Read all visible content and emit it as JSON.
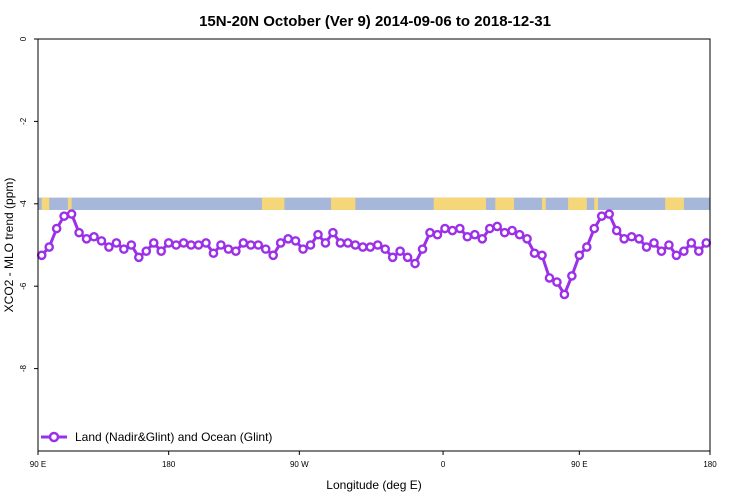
{
  "chart_data": {
    "type": "line",
    "title": "15N-20N October (Ver 9)   2014-09-06 to 2018-12-31",
    "xlabel": "Longitude (deg E)",
    "ylabel": "XCO2 - MLO trend (ppm)",
    "xlim": [
      90,
      450
    ],
    "ylim": [
      -10,
      0
    ],
    "x_ticks": [
      {
        "value": 90,
        "label": "90 E"
      },
      {
        "value": 160,
        "label": "180"
      },
      {
        "value": 230,
        "label": "90 W"
      },
      {
        "value": 307,
        "label": "0"
      },
      {
        "value": 380,
        "label": "90 E"
      },
      {
        "value": 450,
        "label": "180"
      }
    ],
    "y_ticks": [
      {
        "value": 0,
        "label": "0"
      },
      {
        "value": -2,
        "label": "-2"
      },
      {
        "value": -4,
        "label": "-4"
      },
      {
        "value": -6,
        "label": "-6"
      },
      {
        "value": -8,
        "label": "-8"
      }
    ],
    "land_band": {
      "y_top": -3.85,
      "y_bottom": -4.15,
      "ocean_color": "#a7b7d9",
      "land_color": "#f5d77a"
    },
    "legend": {
      "placement": "bottom-left"
    },
    "series": [
      {
        "name": "Land (Nadir&Glint) and Ocean (Glint)",
        "color": "#9b30e8",
        "x": [
          92,
          96,
          100,
          104,
          108,
          112,
          116,
          120,
          124,
          128,
          132,
          136,
          140,
          144,
          148,
          152,
          156,
          160,
          164,
          168,
          172,
          176,
          180,
          184,
          188,
          192,
          196,
          200,
          204,
          208,
          212,
          216,
          220,
          224,
          228,
          232,
          236,
          240,
          244,
          248,
          252,
          256,
          260,
          264,
          268,
          272,
          276,
          280,
          284,
          288,
          292,
          296,
          300,
          304,
          308,
          312,
          316,
          320,
          324,
          328,
          332,
          336,
          340,
          344,
          348,
          352,
          356,
          360,
          364,
          368,
          372,
          376,
          380,
          384,
          388,
          392,
          396,
          400,
          404,
          408,
          412,
          416,
          420,
          424,
          428,
          432,
          436,
          440,
          444,
          448
        ],
        "y": [
          -5.25,
          -5.05,
          -4.6,
          -4.3,
          -4.25,
          -4.7,
          -4.85,
          -4.8,
          -4.9,
          -5.05,
          -4.95,
          -5.1,
          -5.0,
          -5.3,
          -5.15,
          -4.95,
          -5.15,
          -4.95,
          -5.0,
          -4.95,
          -5.0,
          -5.0,
          -4.95,
          -5.2,
          -5.0,
          -5.1,
          -5.15,
          -4.95,
          -5.0,
          -5.0,
          -5.1,
          -5.25,
          -4.95,
          -4.85,
          -4.9,
          -5.1,
          -5.0,
          -4.75,
          -4.95,
          -4.7,
          -4.95,
          -4.95,
          -5.0,
          -5.05,
          -5.05,
          -5.0,
          -5.1,
          -5.3,
          -5.15,
          -5.3,
          -5.45,
          -5.1,
          -4.7,
          -4.75,
          -4.6,
          -4.65,
          -4.6,
          -4.8,
          -4.75,
          -4.85,
          -4.6,
          -4.55,
          -4.7,
          -4.65,
          -4.75,
          -4.85,
          -5.2,
          -5.25,
          -5.8,
          -5.9,
          -6.2,
          -5.75,
          -5.25,
          -5.05,
          -4.6,
          -4.3,
          -4.25,
          -4.65,
          -4.85,
          -4.8,
          -4.85,
          -5.05,
          -4.95,
          -5.15,
          -5.0,
          -5.25,
          -5.15,
          -4.95,
          -5.15,
          -4.95
        ]
      }
    ]
  }
}
